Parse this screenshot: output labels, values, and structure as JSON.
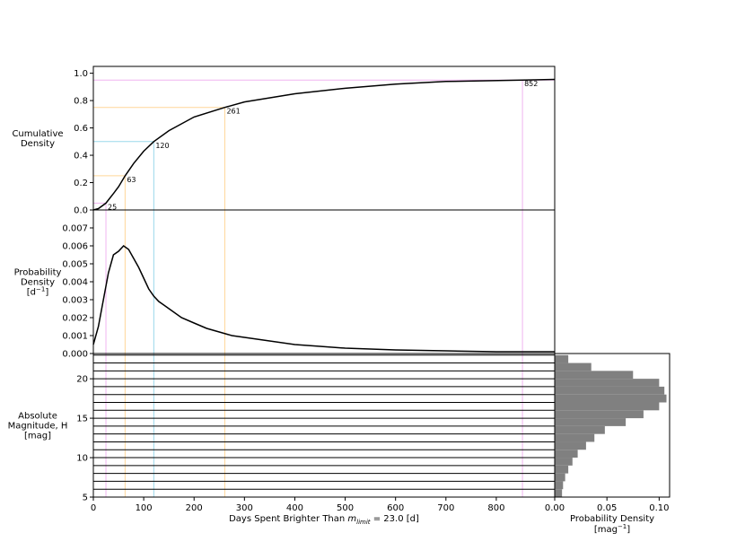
{
  "chart_data": [
    {
      "type": "line",
      "color": "#000000",
      "x": [
        0,
        10,
        25,
        40,
        50,
        63,
        80,
        100,
        120,
        150,
        200,
        261,
        300,
        400,
        500,
        600,
        700,
        852,
        916
      ],
      "values": [
        0,
        0.01,
        0.05,
        0.12,
        0.17,
        0.25,
        0.34,
        0.43,
        0.5,
        0.58,
        0.68,
        0.75,
        0.79,
        0.85,
        0.89,
        0.92,
        0.94,
        0.95,
        0.955
      ],
      "ylim": [
        0,
        1.05
      ],
      "yticks": [
        {
          "value": 0,
          "label": "0.0"
        },
        {
          "value": 0.2,
          "label": "0.2"
        },
        {
          "value": 0.4,
          "label": "0.4"
        },
        {
          "value": 0.6,
          "label": "0.6"
        },
        {
          "value": 0.8,
          "label": "0.8"
        },
        {
          "value": 1,
          "label": "1.0"
        }
      ],
      "xlim": [
        0,
        916
      ],
      "xticks": [
        0,
        100,
        200,
        300,
        400,
        500,
        600,
        700,
        800
      ],
      "xlabel": {
        "text": "Days Spent Brighter Than ",
        "symbol": "m",
        "subscript": "limit",
        "suffix": " = 23.0 [d]"
      },
      "ylabel": [
        "Cumulative",
        "Density"
      ],
      "markers": {
        "x": [
          25,
          63,
          120,
          261,
          852
        ],
        "y": [
          0.05,
          0.25,
          0.5,
          0.75,
          0.95
        ],
        "colors": [
          "#f0b4f0",
          "#ffd699",
          "#9ad8ea",
          "#ffd699",
          "#f0b4f0"
        ]
      }
    },
    {
      "type": "line",
      "color": "#000000",
      "x": [
        0,
        10,
        20,
        30,
        40,
        50,
        60,
        70,
        80,
        90,
        100,
        110,
        120,
        130,
        140,
        150,
        175,
        200,
        225,
        250,
        275,
        300,
        350,
        400,
        450,
        500,
        600,
        700,
        800,
        916
      ],
      "values": [
        0.0005,
        0.0015,
        0.003,
        0.0045,
        0.0055,
        0.0057,
        0.006,
        0.0058,
        0.0053,
        0.0048,
        0.0042,
        0.0036,
        0.0032,
        0.0029,
        0.0027,
        0.0025,
        0.002,
        0.0017,
        0.0014,
        0.0012,
        0.001,
        0.0009,
        0.0007,
        0.0005,
        0.0004,
        0.0003,
        0.0002,
        0.00015,
        0.0001,
        0.0001
      ],
      "ylim": [
        0,
        0.008
      ],
      "yticks": [
        {
          "value": 0,
          "label": "0.000"
        },
        {
          "value": 0.001,
          "label": "0.001"
        },
        {
          "value": 0.002,
          "label": "0.002"
        },
        {
          "value": 0.003,
          "label": "0.003"
        },
        {
          "value": 0.004,
          "label": "0.004"
        },
        {
          "value": 0.005,
          "label": "0.005"
        },
        {
          "value": 0.006,
          "label": "0.006"
        },
        {
          "value": 0.007,
          "label": "0.007"
        }
      ],
      "ylabel": [
        "Probability",
        "Density"
      ],
      "ylabel_unit": [
        "[d",
        "−1",
        "]"
      ]
    },
    {
      "type": "histogram",
      "orientation": "horizontal",
      "color": "#808080",
      "bins": [
        5,
        6,
        7,
        8,
        9,
        10,
        11,
        12,
        13,
        14,
        15,
        16,
        17,
        18,
        19,
        20,
        21,
        22,
        23
      ],
      "values": [
        0.007,
        0.008,
        0.01,
        0.013,
        0.017,
        0.022,
        0.03,
        0.038,
        0.048,
        0.068,
        0.085,
        0.1,
        0.107,
        0.105,
        0.1,
        0.075,
        0.035,
        0.013
      ],
      "ylim": [
        5,
        23.2
      ],
      "yticks": [
        5,
        10,
        15,
        20
      ],
      "xlim": [
        0,
        0.11
      ],
      "xticks": [
        {
          "value": 0,
          "label": "0.00"
        },
        {
          "value": 0.05,
          "label": "0.05"
        },
        {
          "value": 0.1,
          "label": "0.10"
        }
      ],
      "ylabel": [
        "Absolute",
        "Magnitude, H",
        "[mag]"
      ],
      "xlabel": "Probability Density",
      "xlabel_unit": [
        "[mag",
        "−1",
        "]"
      ]
    }
  ]
}
